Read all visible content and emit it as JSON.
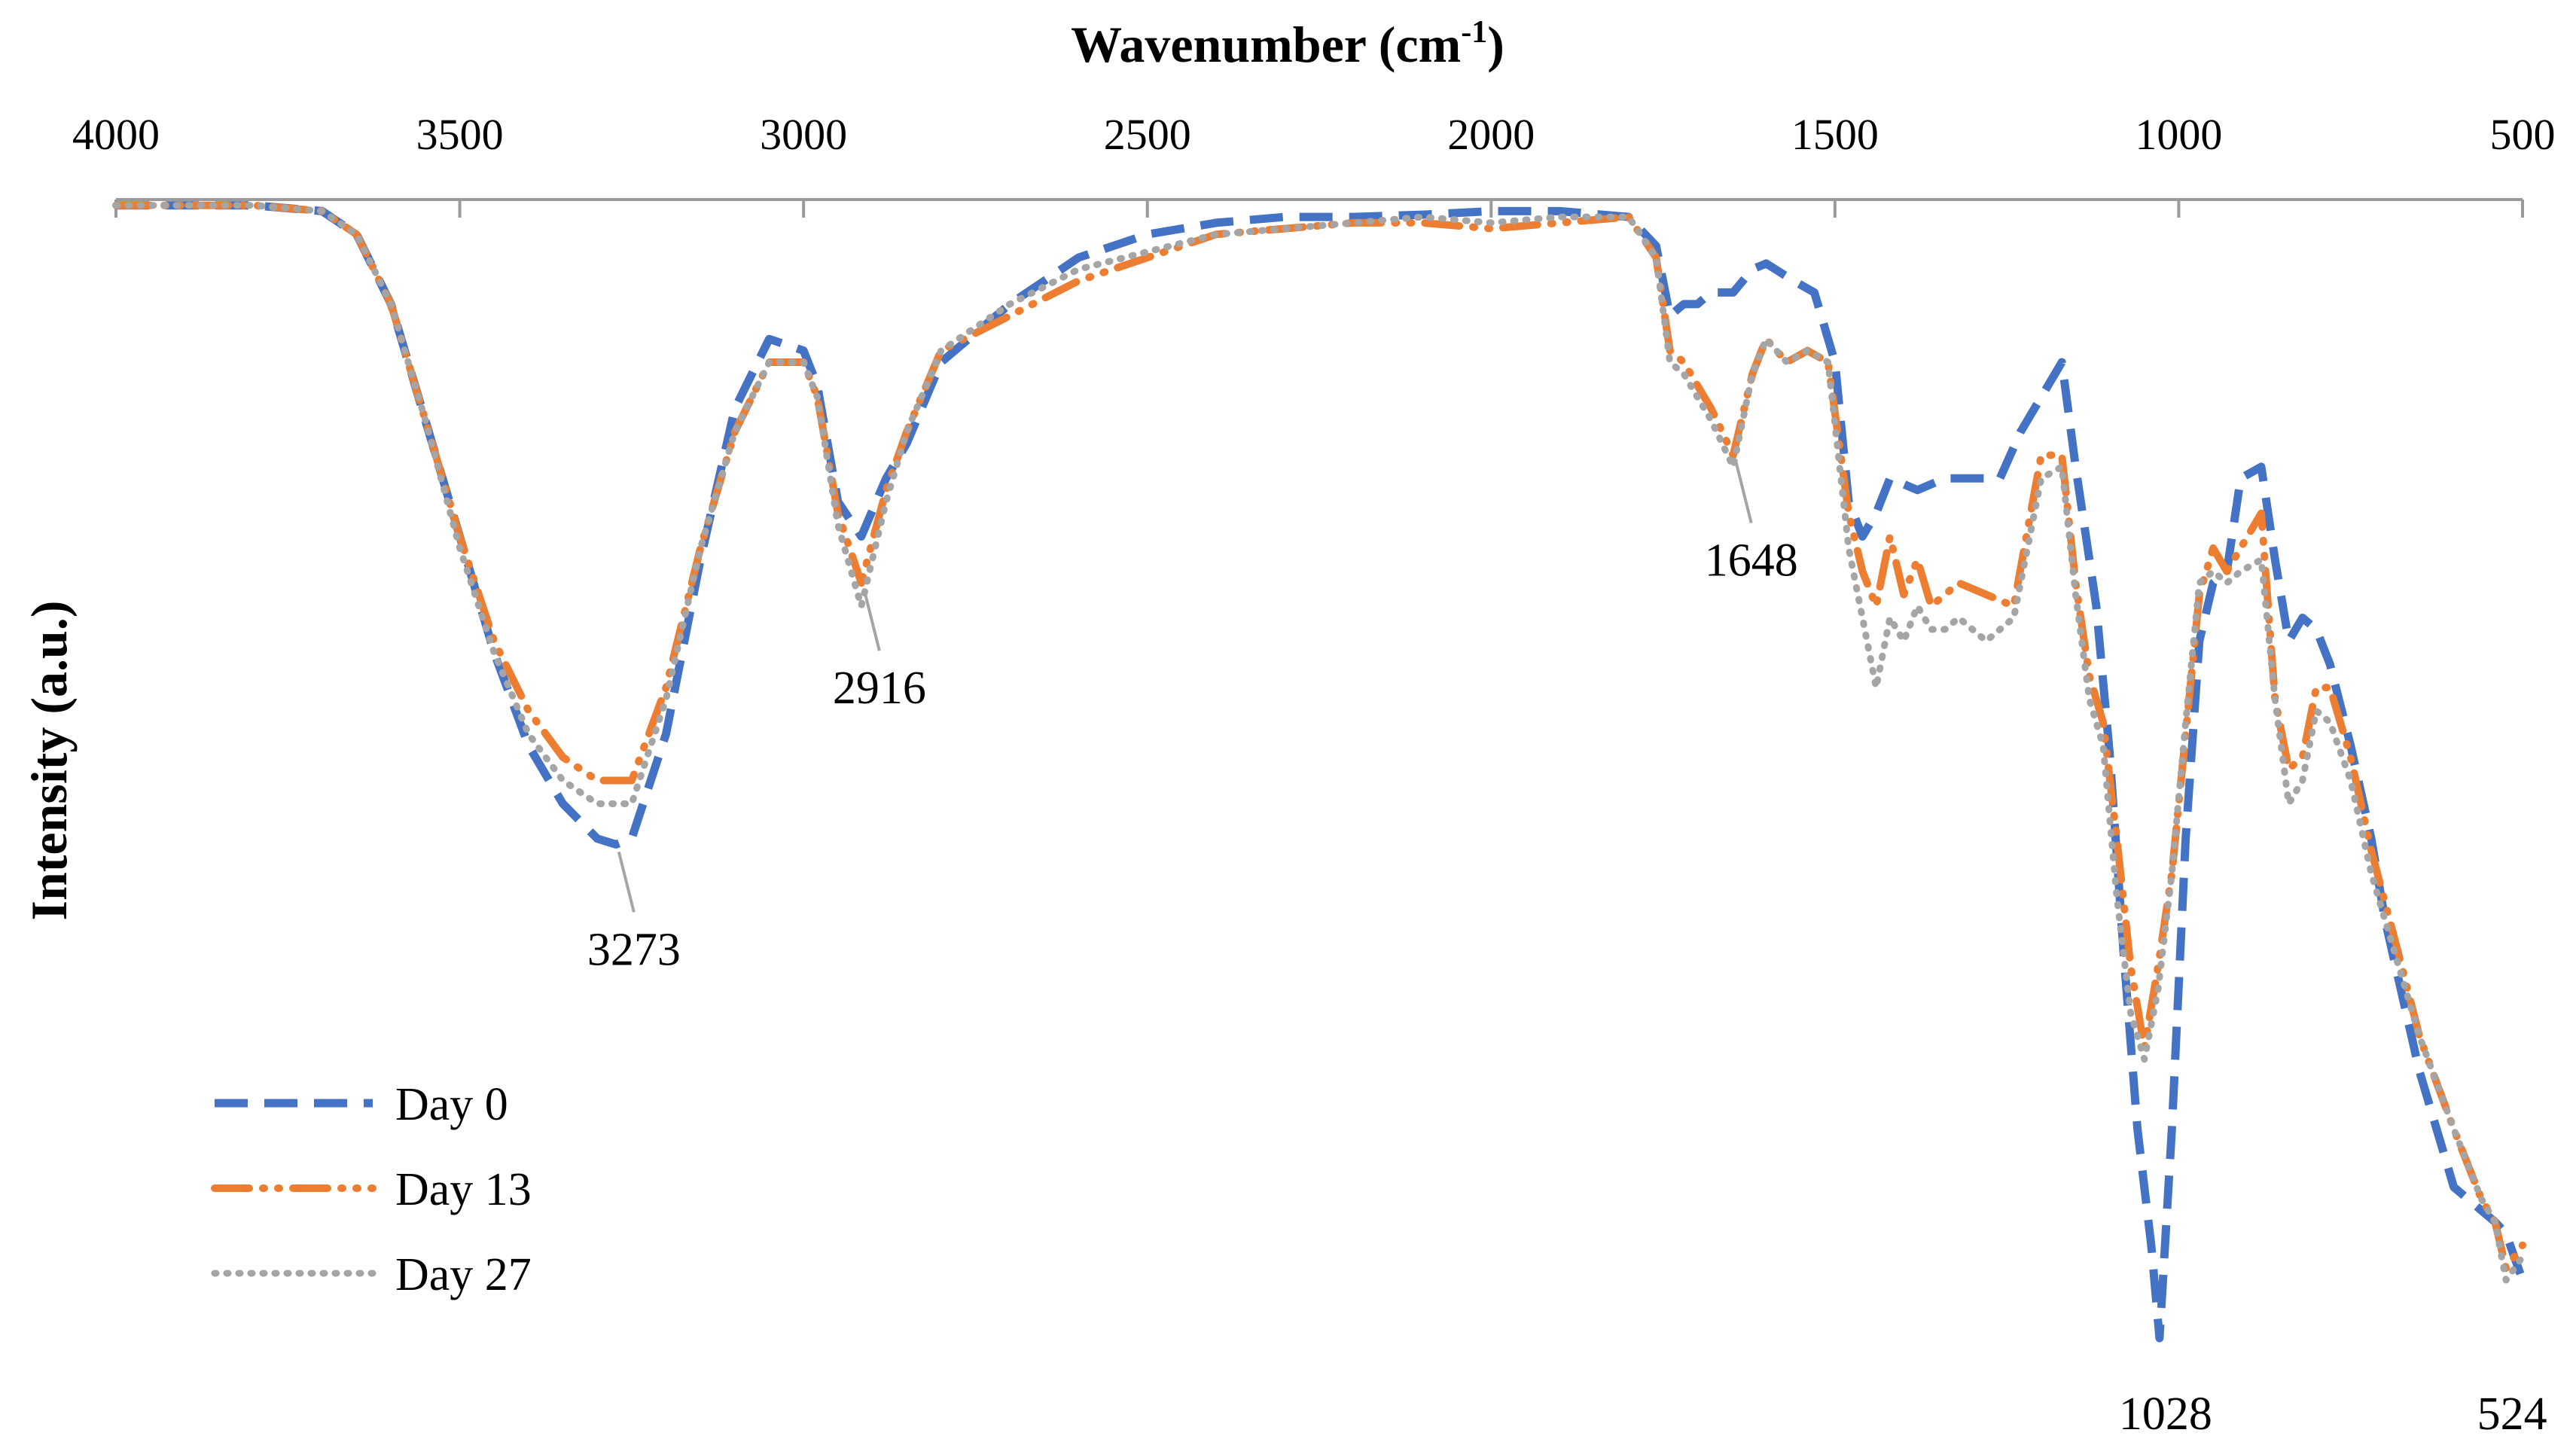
{
  "chart_data": {
    "type": "line",
    "title": "",
    "xlabel": "Wavenumber (cm",
    "xlabel_sup": "-1",
    "xlabel_close": ")",
    "ylabel": "Intensity (a.u.)",
    "x_axis_position": "top",
    "x_reversed": true,
    "xlim": [
      4000,
      500
    ],
    "ylim": [
      0,
      1
    ],
    "x_ticks": [
      "4000",
      "3500",
      "3000",
      "2500",
      "2000",
      "1500",
      "1000",
      "500"
    ],
    "grid": false,
    "legend_position": "bottom-left",
    "series": [
      {
        "name": "Day 0",
        "color": "#4472C4",
        "dash": "dashed",
        "x": [
          4000,
          3800,
          3700,
          3650,
          3600,
          3550,
          3500,
          3450,
          3400,
          3350,
          3300,
          3273,
          3250,
          3200,
          3150,
          3100,
          3050,
          3000,
          2980,
          2950,
          2916,
          2880,
          2850,
          2800,
          2700,
          2600,
          2500,
          2400,
          2300,
          2200,
          2100,
          2000,
          1900,
          1800,
          1760,
          1740,
          1720,
          1700,
          1680,
          1648,
          1620,
          1600,
          1560,
          1530,
          1500,
          1480,
          1460,
          1440,
          1420,
          1380,
          1340,
          1300,
          1260,
          1230,
          1200,
          1170,
          1150,
          1120,
          1100,
          1080,
          1060,
          1040,
          1028,
          1010,
          990,
          970,
          950,
          930,
          910,
          880,
          860,
          840,
          820,
          800,
          780,
          750,
          720,
          700,
          650,
          600,
          560,
          540,
          524,
          500
        ],
        "y": [
          0.005,
          0.005,
          0.01,
          0.03,
          0.09,
          0.19,
          0.29,
          0.39,
          0.47,
          0.52,
          0.55,
          0.555,
          0.55,
          0.46,
          0.31,
          0.18,
          0.12,
          0.13,
          0.16,
          0.26,
          0.29,
          0.24,
          0.21,
          0.14,
          0.09,
          0.05,
          0.03,
          0.02,
          0.015,
          0.015,
          0.013,
          0.01,
          0.01,
          0.015,
          0.04,
          0.1,
          0.09,
          0.09,
          0.08,
          0.08,
          0.06,
          0.055,
          0.07,
          0.08,
          0.14,
          0.26,
          0.29,
          0.27,
          0.24,
          0.25,
          0.24,
          0.24,
          0.24,
          0.2,
          0.17,
          0.14,
          0.23,
          0.35,
          0.48,
          0.65,
          0.8,
          0.9,
          0.98,
          0.8,
          0.55,
          0.38,
          0.33,
          0.32,
          0.24,
          0.23,
          0.31,
          0.38,
          0.36,
          0.37,
          0.4,
          0.47,
          0.55,
          0.62,
          0.75,
          0.85,
          0.87,
          0.88,
          0.89,
          0.93
        ]
      },
      {
        "name": "Day 13",
        "color": "#ED7D31",
        "dash": "dashdot",
        "x": [
          4000,
          3800,
          3700,
          3650,
          3600,
          3550,
          3500,
          3450,
          3400,
          3350,
          3300,
          3250,
          3200,
          3150,
          3100,
          3050,
          3000,
          2980,
          2950,
          2916,
          2880,
          2850,
          2800,
          2700,
          2600,
          2500,
          2400,
          2300,
          2200,
          2100,
          2000,
          1900,
          1800,
          1760,
          1740,
          1720,
          1700,
          1680,
          1648,
          1620,
          1600,
          1570,
          1540,
          1510,
          1480,
          1460,
          1440,
          1420,
          1400,
          1380,
          1360,
          1340,
          1320,
          1280,
          1240,
          1200,
          1170,
          1150,
          1130,
          1110,
          1090,
          1070,
          1050,
          1030,
          1010,
          990,
          970,
          950,
          930,
          910,
          880,
          860,
          840,
          820,
          800,
          780,
          750,
          720,
          680,
          650,
          600,
          560,
          540,
          524,
          500
        ],
        "y": [
          0.005,
          0.005,
          0.01,
          0.03,
          0.09,
          0.19,
          0.29,
          0.38,
          0.44,
          0.48,
          0.5,
          0.5,
          0.42,
          0.3,
          0.2,
          0.14,
          0.14,
          0.17,
          0.27,
          0.33,
          0.25,
          0.2,
          0.13,
          0.1,
          0.07,
          0.05,
          0.03,
          0.025,
          0.02,
          0.02,
          0.025,
          0.02,
          0.015,
          0.05,
          0.13,
          0.14,
          0.16,
          0.18,
          0.22,
          0.15,
          0.12,
          0.14,
          0.13,
          0.14,
          0.27,
          0.32,
          0.35,
          0.29,
          0.34,
          0.31,
          0.35,
          0.34,
          0.33,
          0.34,
          0.35,
          0.22,
          0.22,
          0.33,
          0.41,
          0.45,
          0.55,
          0.66,
          0.73,
          0.66,
          0.58,
          0.46,
          0.34,
          0.3,
          0.32,
          0.3,
          0.27,
          0.43,
          0.49,
          0.48,
          0.42,
          0.42,
          0.48,
          0.56,
          0.65,
          0.72,
          0.8,
          0.86,
          0.88,
          0.92,
          0.9
        ]
      },
      {
        "name": "Day 27",
        "color": "#A5A5A5",
        "dash": "dotted",
        "x": [
          4000,
          3800,
          3700,
          3650,
          3600,
          3550,
          3500,
          3450,
          3400,
          3350,
          3300,
          3250,
          3200,
          3150,
          3100,
          3050,
          3000,
          2980,
          2950,
          2916,
          2880,
          2850,
          2800,
          2700,
          2600,
          2500,
          2400,
          2300,
          2200,
          2100,
          2000,
          1900,
          1800,
          1760,
          1740,
          1720,
          1700,
          1680,
          1648,
          1620,
          1600,
          1570,
          1540,
          1510,
          1480,
          1460,
          1440,
          1420,
          1400,
          1380,
          1360,
          1340,
          1320,
          1280,
          1240,
          1200,
          1170,
          1150,
          1130,
          1110,
          1090,
          1070,
          1050,
          1030,
          1010,
          990,
          970,
          950,
          930,
          910,
          880,
          860,
          840,
          820,
          800,
          780,
          750,
          720,
          680,
          650,
          600,
          560,
          540,
          524,
          500
        ],
        "y": [
          0.005,
          0.005,
          0.01,
          0.03,
          0.09,
          0.19,
          0.3,
          0.39,
          0.46,
          0.5,
          0.52,
          0.52,
          0.43,
          0.3,
          0.2,
          0.14,
          0.14,
          0.17,
          0.28,
          0.35,
          0.26,
          0.2,
          0.13,
          0.09,
          0.06,
          0.045,
          0.03,
          0.025,
          0.02,
          0.015,
          0.02,
          0.015,
          0.015,
          0.05,
          0.14,
          0.15,
          0.17,
          0.19,
          0.23,
          0.15,
          0.12,
          0.14,
          0.13,
          0.14,
          0.3,
          0.36,
          0.42,
          0.36,
          0.38,
          0.35,
          0.37,
          0.37,
          0.36,
          0.38,
          0.36,
          0.24,
          0.23,
          0.34,
          0.43,
          0.47,
          0.6,
          0.7,
          0.74,
          0.68,
          0.58,
          0.45,
          0.33,
          0.32,
          0.33,
          0.32,
          0.31,
          0.43,
          0.52,
          0.5,
          0.44,
          0.45,
          0.5,
          0.58,
          0.66,
          0.72,
          0.8,
          0.86,
          0.88,
          0.93,
          0.91
        ]
      }
    ],
    "annotations": [
      {
        "label": "3273",
        "x": 3273,
        "y": 0.555
      },
      {
        "label": "2916",
        "x": 2916,
        "y": 0.33
      },
      {
        "label": "1648",
        "x": 1648,
        "y": 0.22
      },
      {
        "label": "1028",
        "x": 1028,
        "y": 0.98
      },
      {
        "label": "524",
        "x": 524,
        "y": 0.92
      }
    ]
  }
}
